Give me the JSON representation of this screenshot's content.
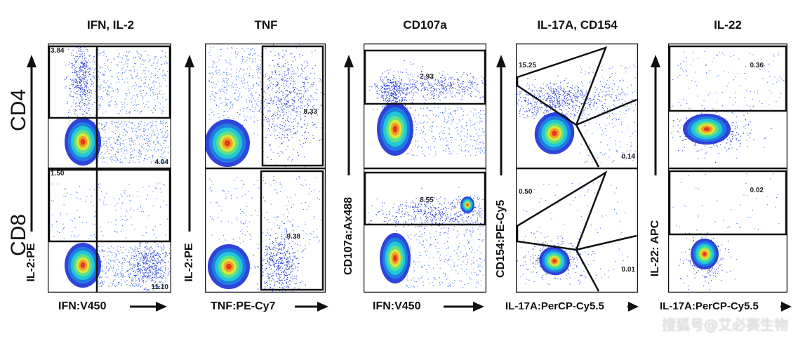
{
  "panels": [
    {
      "title": "IFN, IL-2",
      "y_label": "IL-2:PE",
      "x_label": "IFN:V450",
      "cd4_values": [
        "3.84",
        "4.04"
      ],
      "cd8_values": [
        "1.50",
        "11.10"
      ]
    },
    {
      "title": "TNF",
      "y_label": "IL-2:PE",
      "x_label": "TNF:PE-Cy7",
      "cd4_values": [
        "8.33"
      ],
      "cd8_values": [
        "9.38"
      ]
    },
    {
      "title": "CD107a",
      "y_label": "CD107a:Ax488",
      "x_label": "IFN:V450",
      "cd4_values": [
        "2.93"
      ],
      "cd8_values": [
        "8.55"
      ]
    },
    {
      "title": "IL-17A, CD154",
      "y_label": "CD154:PE-Cy5",
      "x_label": "IL-17A:PerCP-Cy5.5",
      "cd4_values": [
        "15.25",
        "0.14"
      ],
      "cd8_values": [
        "0.50",
        "0.01"
      ]
    },
    {
      "title": "IL-22",
      "y_label": "IL-22: APC",
      "x_label": "IL-17A:PerCP-Cy5.5",
      "cd4_values": [
        "0.36"
      ],
      "cd8_values": [
        "0.02"
      ]
    }
  ],
  "rows": {
    "top": "CD4",
    "bottom": "CD8"
  },
  "watermark": "搜狐号@艾必赛生物",
  "colors": {
    "gate": "#111111",
    "density_low": "#1a2fd6",
    "density_mid": "#22c7d8",
    "density_high": "#e33b1b"
  }
}
